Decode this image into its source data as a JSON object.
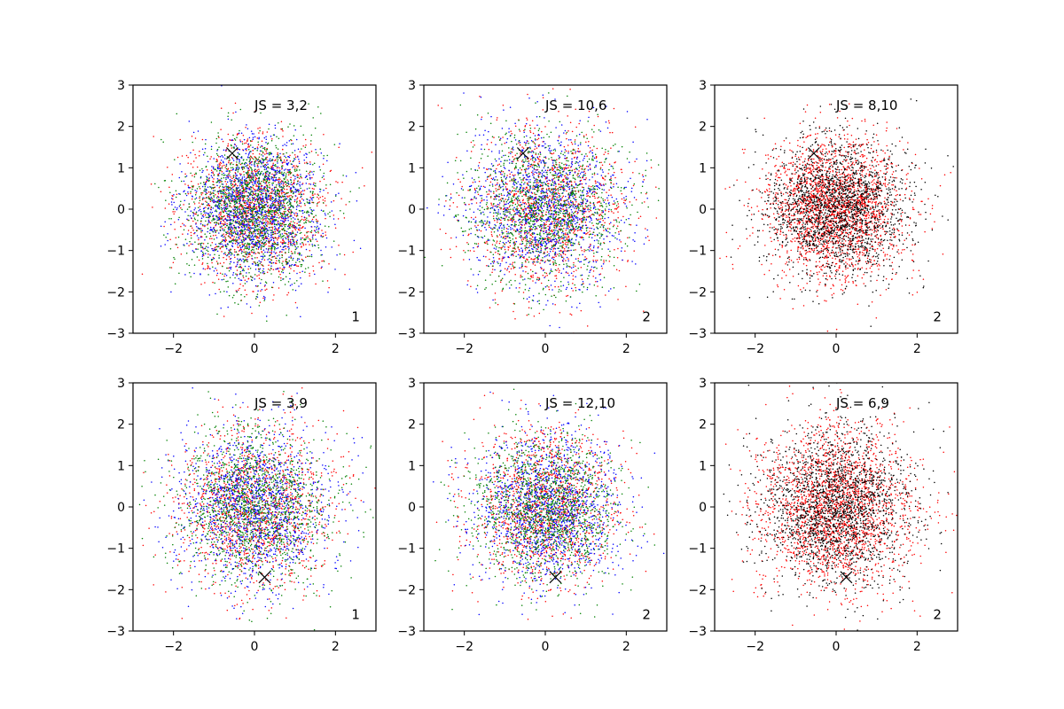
{
  "chart_data": [
    {
      "type": "scatter",
      "annotation": "JS = 3,2",
      "corner_label": "1",
      "marker": {
        "x": -0.55,
        "y": 1.35,
        "symbol": "x"
      },
      "series": [
        {
          "color": "#ff0000",
          "count": 1500
        },
        {
          "color": "#0000ff",
          "count": 1500
        },
        {
          "color": "#008000",
          "count": 1500
        }
      ],
      "distribution": {
        "spread": 0.85,
        "x_mean": 0.0,
        "y_mean": 0.0
      },
      "xlim": [
        -3,
        3
      ],
      "ylim": [
        -3,
        3
      ],
      "xticks": [
        "−2",
        "0",
        "2"
      ],
      "yticks": [
        "−3",
        "−2",
        "−1",
        "0",
        "1",
        "2",
        "3"
      ]
    },
    {
      "type": "scatter",
      "annotation": "JS = 10,6",
      "corner_label": "2",
      "marker": {
        "x": -0.55,
        "y": 1.35,
        "symbol": "x"
      },
      "series": [
        {
          "color": "#ff0000",
          "count": 1300
        },
        {
          "color": "#0000ff",
          "count": 1300
        },
        {
          "color": "#008000",
          "count": 1300
        }
      ],
      "distribution": {
        "spread": 0.95,
        "x_mean": 0.0,
        "y_mean": 0.0
      },
      "xlim": [
        -3,
        3
      ],
      "ylim": [
        -3,
        3
      ],
      "xticks": [
        "−2",
        "0",
        "2"
      ],
      "yticks": [
        "−3",
        "−2",
        "−1",
        "0",
        "1",
        "2",
        "3"
      ]
    },
    {
      "type": "scatter",
      "annotation": "JS = 8,10",
      "corner_label": "2",
      "marker": {
        "x": -0.55,
        "y": 1.35,
        "symbol": "x"
      },
      "series": [
        {
          "color": "#ff0000",
          "count": 2200
        },
        {
          "color": "#000000",
          "count": 2000
        }
      ],
      "distribution": {
        "spread": 0.85,
        "x_mean": 0.0,
        "y_mean": 0.0
      },
      "xlim": [
        -3,
        3
      ],
      "ylim": [
        -3,
        3
      ],
      "xticks": [
        "−2",
        "0",
        "2"
      ],
      "yticks": [
        "−3",
        "−2",
        "−1",
        "0",
        "1",
        "2",
        "3"
      ]
    },
    {
      "type": "scatter",
      "annotation": "JS = 3,9",
      "corner_label": "1",
      "marker": {
        "x": 0.25,
        "y": -1.7,
        "symbol": "x"
      },
      "series": [
        {
          "color": "#ff0000",
          "count": 1400
        },
        {
          "color": "#0000ff",
          "count": 1400
        },
        {
          "color": "#008000",
          "count": 1400
        }
      ],
      "distribution": {
        "spread": 0.95,
        "x_mean": 0.0,
        "y_mean": 0.0
      },
      "xlim": [
        -3,
        3
      ],
      "ylim": [
        -3,
        3
      ],
      "xticks": [
        "−2",
        "0",
        "2"
      ],
      "yticks": [
        "−3",
        "−2",
        "−1",
        "0",
        "1",
        "2",
        "3"
      ]
    },
    {
      "type": "scatter",
      "annotation": "JS = 12,10",
      "corner_label": "2",
      "marker": {
        "x": 0.25,
        "y": -1.7,
        "symbol": "x"
      },
      "series": [
        {
          "color": "#ff0000",
          "count": 1400
        },
        {
          "color": "#0000ff",
          "count": 1400
        },
        {
          "color": "#008000",
          "count": 1400
        }
      ],
      "distribution": {
        "spread": 0.9,
        "x_mean": 0.0,
        "y_mean": 0.0
      },
      "xlim": [
        -3,
        3
      ],
      "ylim": [
        -3,
        3
      ],
      "xticks": [
        "−2",
        "0",
        "2"
      ],
      "yticks": [
        "−3",
        "−2",
        "−1",
        "0",
        "1",
        "2",
        "3"
      ]
    },
    {
      "type": "scatter",
      "annotation": "JS = 6,9",
      "corner_label": "2",
      "marker": {
        "x": 0.25,
        "y": -1.7,
        "symbol": "x"
      },
      "series": [
        {
          "color": "#ff0000",
          "count": 2200
        },
        {
          "color": "#000000",
          "count": 2000
        }
      ],
      "distribution": {
        "spread": 0.95,
        "x_mean": 0.0,
        "y_mean": 0.0
      },
      "xlim": [
        -3,
        3
      ],
      "ylim": [
        -3,
        3
      ],
      "xticks": [
        "−2",
        "0",
        "2"
      ],
      "yticks": [
        "−3",
        "−2",
        "−1",
        "0",
        "1",
        "2",
        "3"
      ]
    }
  ]
}
